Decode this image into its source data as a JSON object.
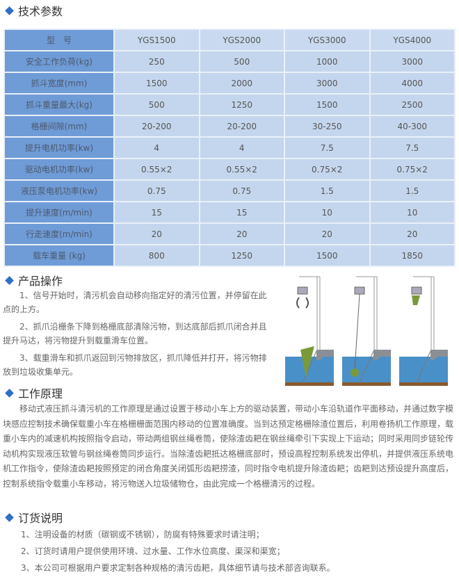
{
  "sections": {
    "params": "技术参数",
    "operation": "产品操作",
    "principle": "工作原理",
    "ordering": "订货说明"
  },
  "table": {
    "header": [
      "型　号",
      "YGS1500",
      "YGS2000",
      "YGS3000",
      "YGS4000"
    ],
    "rows": [
      [
        "安全工作负荷(kg)",
        "250",
        "500",
        "1000",
        "3000"
      ],
      [
        "抓斗宽度(mm)",
        "1500",
        "2000",
        "3000",
        "4000"
      ],
      [
        "抓斗重量最大(kg)",
        "500",
        "1250",
        "1500",
        "2500"
      ],
      [
        "格栅间隙(mm)",
        "20-200",
        "20-200",
        "30-250",
        "40-300"
      ],
      [
        "提升电机功率(kw)",
        "4",
        "4",
        "7.5",
        "7.5"
      ],
      [
        "驱动电机功率(kw)",
        "0.55×2",
        "0.55×2",
        "0.75×2",
        "0.75×2"
      ],
      [
        "液压泵电机功率(kw)",
        "0.75",
        "0.75",
        "1.5",
        "1.5"
      ],
      [
        "提升速度(m/min)",
        "15",
        "15",
        "10",
        "10"
      ],
      [
        "行走速度(m/min)",
        "20",
        "20",
        "20",
        "20"
      ],
      [
        "载车重量 (kg)",
        "800",
        "1250",
        "1500",
        "1850"
      ]
    ]
  },
  "operation": [
    "　　1、信号开始时，清污机会自动移向指定好的清污位置，并停留在此点的上方。",
    "　　2、抓爪沿栅条下降到格栅底部清除污物，到达底部后抓爪闭合并且提升马达，将污物提升到载重滑车位置。",
    "　　3、载重滑车和抓爪返回到污物排放区，抓爪降低并打开，将污物排放到垃圾收集单元。"
  ],
  "principle": "　　移动式液压抓斗清污机的工作原理是通过设置于移动小车上方的驱动装置，带动小车沿轨道作平面移动，并通过数字模块感应控制技术确保载重小车在格栅栅面范围内移动的位置准确度。当到达预定格栅除渣位置后，利用卷扬机工作原理，载重小车内的减速机构按照指令启动，带动两组钢丝绳卷筒，使除渣齿耙在钢丝绳牵引下实现上下运动；同时采用同步链轮传动机构实现液压软管与钢丝绳卷筒同步运行。当除渣齿耙抵达格栅底部时，预设高程控制系统发出停机，并提供液压系统电机工作指令，使除渣齿耙按照预定的闭合角度关闭弧形齿耙捞渣，同时指令电机提升除渣齿耙；齿耙到达预设提升高度后，控制系统指令载重小车移动，将污物送入垃圾储物仓，由此完成一个格栅清污的过程。",
  "ordering": [
    "1、注明设备的材质（碳钢或不锈钢），防腐有特殊要求时请注明；",
    "2、订货时请用户提供使用环境、过水量、工作水位高度、渠深和渠宽；",
    "3、本公司可根据用户要求定制各种规格的清污齿耙，具体细节请与技术部咨询联系。"
  ],
  "colors": {
    "accent": "#2f6fc6",
    "label_cell": "#6f9bd6",
    "value_cell": "#c4d6ed",
    "water": "#4a90c8",
    "ground": "#8a5a2b",
    "debris": "#7a9a3a"
  }
}
